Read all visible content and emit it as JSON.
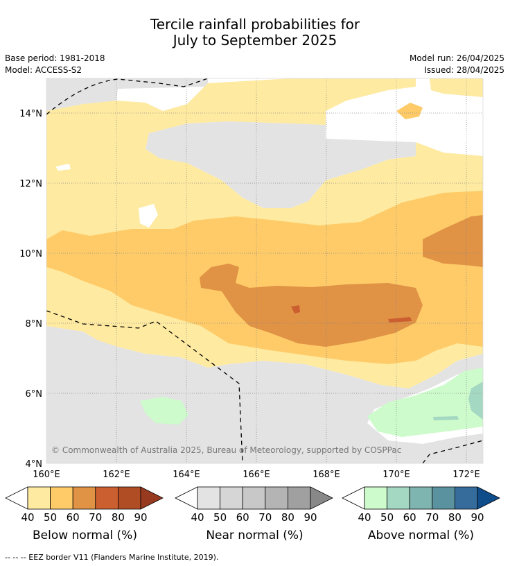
{
  "header": {
    "title_line1": "Tercile rainfall probabilities for",
    "title_line2": "July to September 2025",
    "base_period": "Base period: 1981-2018",
    "model": "Model: ACCESS-S2",
    "model_run": "Model run: 26/04/2025",
    "issued": "Issued: 28/04/2025"
  },
  "map": {
    "lon_labels": [
      "160°E",
      "162°E",
      "164°E",
      "166°E",
      "168°E",
      "170°E",
      "172°E"
    ],
    "lat_labels": [
      "14°N",
      "12°N",
      "10°N",
      "8°N",
      "6°N",
      "4°N"
    ],
    "copyright": "© Commonwealth of Australia 2025, Bureau of Meteorology, supported by COSPPac",
    "colors": {
      "near_normal": "#e3e3e3",
      "below_50": "#feeaa0",
      "below_60": "#fecb68",
      "below_70": "#e09245",
      "below_80": "#cc5f30",
      "above_50": "#cdfbcc",
      "above_60": "#a5d8c2"
    }
  },
  "colorbars": [
    {
      "label": "Below normal (%)",
      "ticks": [
        "40",
        "50",
        "60",
        "70",
        "80",
        "90"
      ],
      "colors": [
        "#ffffff",
        "#feeaa0",
        "#fecb68",
        "#e09245",
        "#cc5f30",
        "#b14d25",
        "#973a1f"
      ]
    },
    {
      "label": "Near normal (%)",
      "ticks": [
        "40",
        "50",
        "60",
        "70",
        "80",
        "90"
      ],
      "colors": [
        "#ffffff",
        "#e3e3e3",
        "#d6d6d6",
        "#c8c8c8",
        "#b4b4b4",
        "#a0a0a0",
        "#888888"
      ]
    },
    {
      "label": "Above normal (%)",
      "ticks": [
        "40",
        "50",
        "60",
        "70",
        "80",
        "90"
      ],
      "colors": [
        "#ffffff",
        "#cdfbcc",
        "#a5d8c2",
        "#7fb5b0",
        "#5a92a0",
        "#366c9c",
        "#0f4c8a"
      ]
    }
  ],
  "footnote": "--  --  -- EEZ border V11 (Flanders Marine Institute, 2019)."
}
